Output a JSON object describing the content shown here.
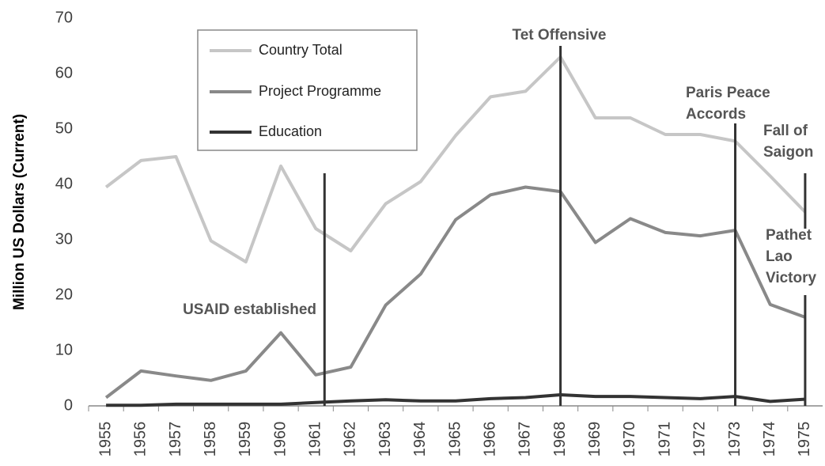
{
  "chart_data": {
    "type": "line",
    "y_label": "Million US Dollars (Current)",
    "categories": [
      "1955",
      "1956",
      "1957",
      "1958",
      "1959",
      "1960",
      "1961",
      "1962",
      "1963",
      "1964",
      "1965",
      "1966",
      "1967",
      "1968",
      "1969",
      "1970",
      "1971",
      "1972",
      "1973",
      "1974",
      "1975"
    ],
    "series": [
      {
        "name": "Country Total",
        "color": "#c6c6c6",
        "values": [
          39.5,
          44.3,
          45,
          29.8,
          26,
          43.3,
          32,
          28,
          36.5,
          40.5,
          48.8,
          55.8,
          56.8,
          63,
          52,
          52,
          49,
          49,
          47.8,
          41.5,
          35
        ]
      },
      {
        "name": "Project Programme",
        "color": "#898989",
        "values": [
          1.5,
          6.3,
          5.4,
          4.6,
          6.3,
          13.2,
          5.6,
          7,
          18.2,
          23.8,
          33.6,
          38.1,
          39.5,
          38.7,
          29.5,
          33.8,
          31.3,
          30.7,
          31.7,
          18.3,
          16
        ]
      },
      {
        "name": "Education",
        "color": "#333333",
        "values": [
          0.1,
          0.1,
          0.3,
          0.3,
          0.3,
          0.3,
          0.6,
          0.9,
          1.1,
          0.9,
          0.9,
          1.3,
          1.5,
          2,
          1.7,
          1.7,
          1.5,
          1.3,
          1.7,
          0.8,
          1.2
        ]
      }
    ],
    "ylim": [
      0,
      70
    ],
    "yticks": [
      0,
      10,
      20,
      30,
      40,
      50,
      60,
      70
    ],
    "grid": false,
    "annotations": [
      {
        "lines": [
          "USAID established"
        ],
        "x": 1961.25,
        "y": [
          42,
          0
        ]
      },
      {
        "lines": [
          "Tet Offensive"
        ],
        "x": 1968,
        "y": [
          65,
          0
        ]
      },
      {
        "lines": [
          "Paris Peace",
          "Accords"
        ],
        "x": 1973,
        "y": [
          51,
          0
        ]
      },
      {
        "lines": [
          "Fall of",
          "Saigon"
        ],
        "x": 1975,
        "y": [
          42,
          32
        ]
      },
      {
        "lines": [
          "Pathet",
          "Lao",
          "Victory"
        ],
        "x": 1975,
        "y": [
          20,
          0
        ]
      }
    ]
  }
}
